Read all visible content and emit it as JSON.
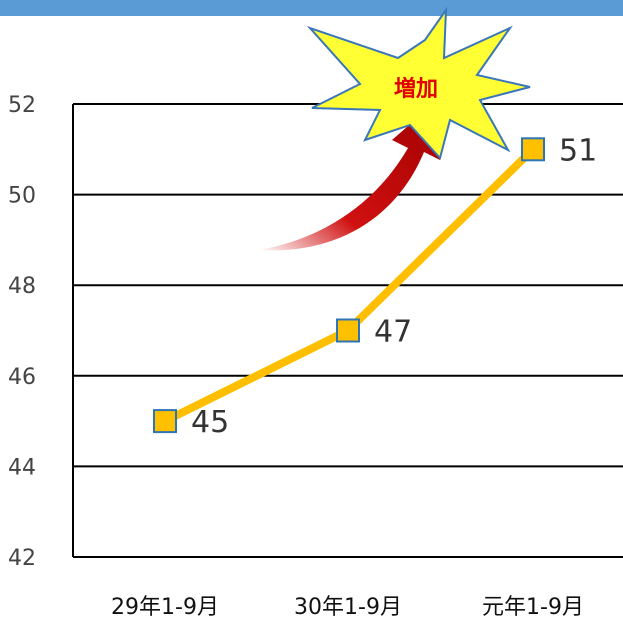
{
  "chart_data": {
    "type": "line",
    "categories": [
      "29年1-9月",
      "30年1-9月",
      "元年1-9月"
    ],
    "series": [
      {
        "values": [
          45,
          47,
          51
        ]
      }
    ],
    "ylim": [
      42,
      52
    ],
    "yticks": [
      "42",
      "44",
      "46",
      "48",
      "50",
      "52"
    ],
    "data_labels": [
      "45",
      "47",
      "51"
    ],
    "grid": true,
    "annotations": [
      {
        "type": "starburst",
        "text": "増加"
      },
      {
        "type": "curved-arrow"
      }
    ]
  },
  "colors": {
    "header_bar": "#5b9bd5",
    "line": "#ffbf00",
    "marker_fill": "#ffc000",
    "marker_stroke": "#2e75b6",
    "burst_fill": "#ffff33",
    "burst_text": "#e00000",
    "arrow": "#c00000"
  }
}
